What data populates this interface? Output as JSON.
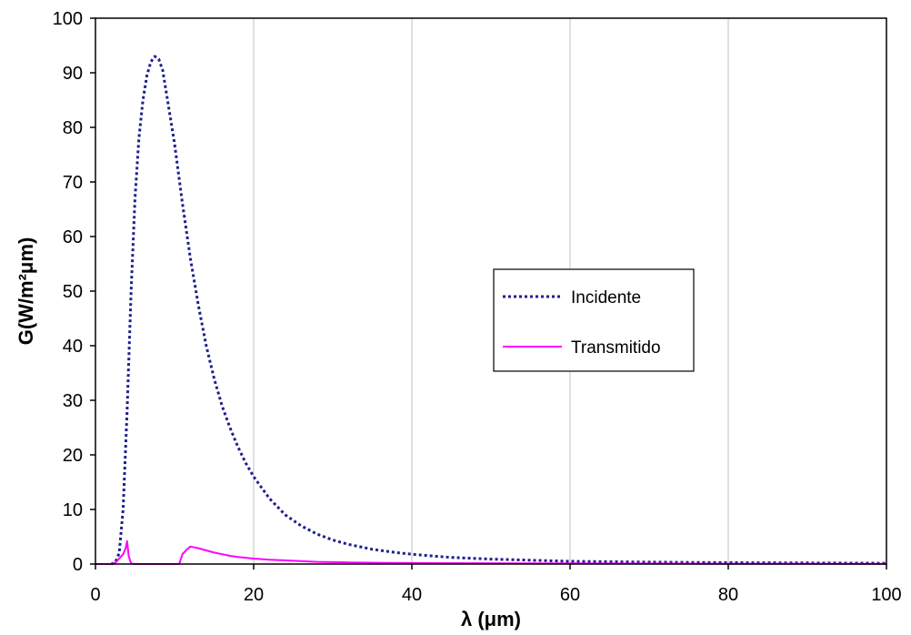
{
  "chart_data": {
    "type": "line",
    "title": "",
    "xlabel": "λ (μm)",
    "ylabel": "G(W/m²μm)",
    "xlim": [
      0,
      100
    ],
    "ylim": [
      0,
      100
    ],
    "x_ticks": [
      "0",
      "20",
      "40",
      "60",
      "80",
      "100"
    ],
    "y_ticks": [
      "0",
      "10",
      "20",
      "30",
      "40",
      "50",
      "60",
      "70",
      "80",
      "90",
      "100"
    ],
    "grid": "vertical",
    "legend_position": "center-right",
    "series": [
      {
        "name": "Incidente",
        "color": "#1f1f8f",
        "style": "dotted",
        "x": [
          2,
          2.5,
          3,
          3.5,
          4,
          4.5,
          5,
          5.5,
          6,
          6.5,
          7,
          7.5,
          8,
          8.5,
          9,
          10,
          11,
          12,
          13,
          14,
          15,
          16,
          17,
          18,
          19,
          20,
          22,
          24,
          26,
          28,
          30,
          32,
          35,
          38,
          40,
          45,
          50,
          55,
          60,
          70,
          80,
          90,
          100
        ],
        "values": [
          0,
          0.3,
          2,
          10,
          28,
          50,
          67,
          78,
          85,
          89.5,
          92,
          93,
          92.5,
          90.5,
          86,
          77,
          66,
          56,
          47.5,
          40,
          34,
          29,
          25,
          21.5,
          18.5,
          16,
          12,
          9,
          7,
          5.5,
          4.4,
          3.6,
          2.7,
          2.1,
          1.8,
          1.2,
          0.9,
          0.7,
          0.5,
          0.35,
          0.25,
          0.2,
          0.15
        ]
      },
      {
        "name": "Transmitido",
        "color": "#ff00ff",
        "style": "solid",
        "x": [
          0,
          2,
          2.5,
          3,
          3.5,
          3.8,
          4,
          4.2,
          4.5,
          5,
          10,
          10.6,
          11,
          11.5,
          12,
          13,
          14,
          15,
          16,
          17,
          18,
          20,
          22,
          25,
          28,
          32,
          37,
          45,
          60,
          80,
          100
        ],
        "values": [
          0,
          0,
          0.2,
          1,
          1.8,
          2.8,
          4.2,
          1.5,
          0.1,
          0,
          0,
          0.05,
          1.8,
          2.6,
          3.2,
          2.9,
          2.5,
          2.1,
          1.8,
          1.5,
          1.3,
          1.0,
          0.8,
          0.6,
          0.4,
          0.3,
          0.2,
          0.15,
          0.1,
          0.05,
          0.02
        ]
      }
    ]
  }
}
